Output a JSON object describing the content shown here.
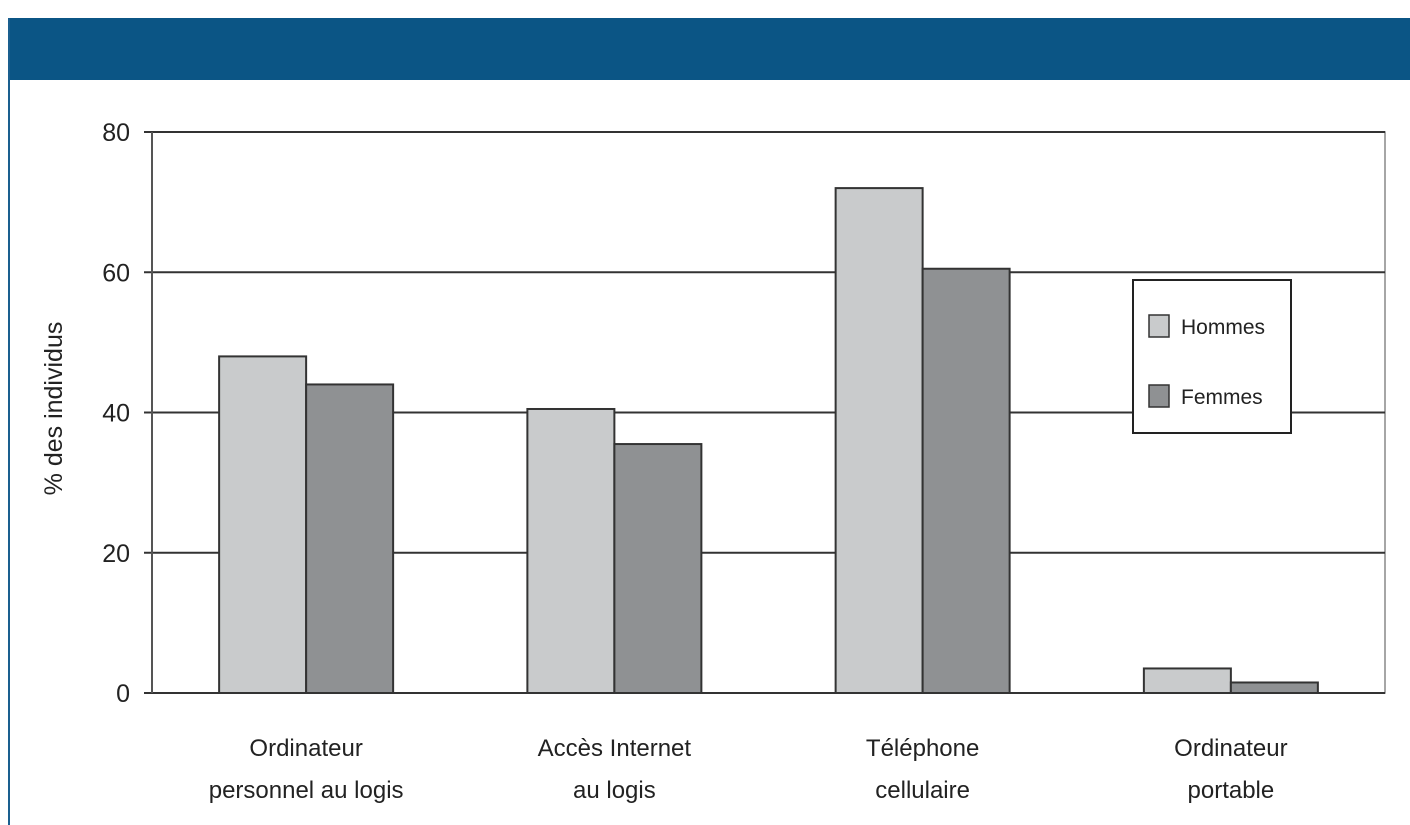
{
  "colors": {
    "header": "#0b5585",
    "hommes": "#c9cbcc",
    "femmes": "#8f9193",
    "grid": "#333333"
  },
  "chart_data": {
    "type": "bar",
    "title": "",
    "xlabel": "",
    "ylabel": "% des individus",
    "ylim": [
      0,
      80
    ],
    "yticks": [
      0,
      20,
      40,
      60,
      80
    ],
    "grid": "horizontal",
    "legend_position": "right",
    "categories": [
      [
        "Ordinateur",
        "personnel au logis"
      ],
      [
        "Accès Internet",
        "au logis"
      ],
      [
        "Téléphone",
        "cellulaire"
      ],
      [
        "Ordinateur",
        "portable"
      ]
    ],
    "series": [
      {
        "name": "Hommes",
        "values": [
          48,
          40.5,
          72,
          3.5
        ]
      },
      {
        "name": "Femmes",
        "values": [
          44,
          35.5,
          60.5,
          1.5
        ]
      }
    ]
  }
}
